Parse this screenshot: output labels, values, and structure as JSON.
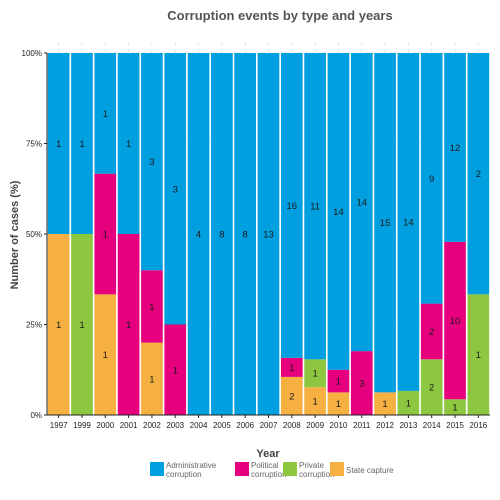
{
  "chart_data": {
    "type": "bar",
    "stacked": "percent",
    "title": "Corruption events by type and years",
    "xlabel": "Year",
    "ylabel": "Number of cases (%)",
    "ylim": [
      0,
      100
    ],
    "yticks": [
      "0%",
      "25%",
      "50%",
      "75%",
      "100%"
    ],
    "grid": true,
    "legend_position": "bottom",
    "categories": [
      "1997",
      "1999",
      "2000",
      "2001",
      "2002",
      "2003",
      "2004",
      "2005",
      "2006",
      "2007",
      "2008",
      "2009",
      "2010",
      "2011",
      "2012",
      "2013",
      "2014",
      "2015",
      "2016"
    ],
    "series": [
      {
        "name": "State capture",
        "color": "#F5B041",
        "values": [
          1,
          0,
          1,
          0,
          1,
          0,
          0,
          0,
          0,
          0,
          2,
          1,
          1,
          0,
          1,
          0,
          0,
          0,
          0
        ]
      },
      {
        "name": "Private corruption",
        "color": "#8DC63F",
        "values": [
          0,
          1,
          0,
          0,
          0,
          0,
          0,
          0,
          0,
          0,
          0,
          1,
          0,
          0,
          0,
          1,
          2,
          1,
          1
        ]
      },
      {
        "name": "Political corruption",
        "color": "#E6007E",
        "values": [
          0,
          0,
          1,
          1,
          1,
          1,
          0,
          0,
          0,
          0,
          1,
          0,
          1,
          3,
          0,
          0,
          2,
          10,
          0
        ]
      },
      {
        "name": "Administrative corruption",
        "color": "#009FDF",
        "values": [
          1,
          1,
          1,
          1,
          3,
          3,
          4,
          8,
          8,
          13,
          16,
          11,
          14,
          14,
          15,
          14,
          9,
          12,
          2
        ]
      }
    ],
    "legend_order": [
      {
        "label": "Administrative corruption",
        "lines": [
          "Administrative",
          "corruption"
        ],
        "color": "#009FDF"
      },
      {
        "label": "Political corruption",
        "lines": [
          "Political",
          "corruption"
        ],
        "color": "#E6007E"
      },
      {
        "label": "Private corruption",
        "lines": [
          "Private",
          "corruption"
        ],
        "color": "#8DC63F"
      },
      {
        "label": "State capture",
        "lines": [
          "State capture"
        ],
        "color": "#F5B041"
      }
    ]
  }
}
